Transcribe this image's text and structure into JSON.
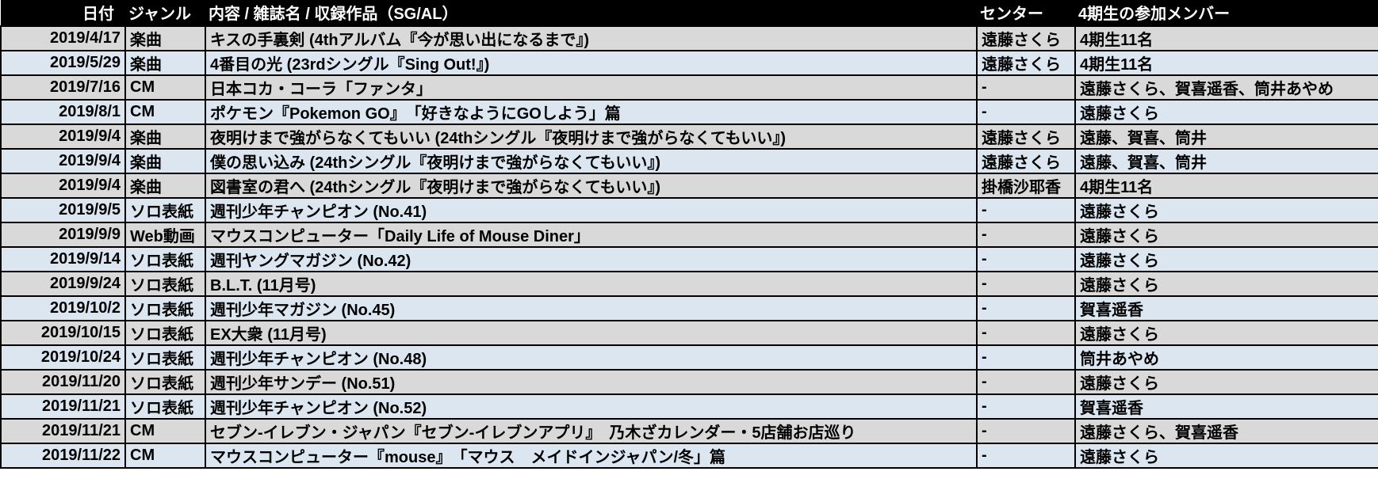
{
  "table": {
    "headers": {
      "date": "日付",
      "genre": "ジャンル",
      "content": "内容 / 雑誌名 / 収録作品（SG/AL）",
      "center": "センター",
      "members": "4期生の参加メンバー"
    },
    "rows": [
      {
        "date": "2019/4/17",
        "genre": "楽曲",
        "content": "キスの手裏剣 (4thアルバム『今が思い出になるまで』)",
        "center": "遠藤さくら",
        "members": "4期生11名"
      },
      {
        "date": "2019/5/29",
        "genre": "楽曲",
        "content": "4番目の光 (23rdシングル『Sing Out!』)",
        "center": "遠藤さくら",
        "members": "4期生11名"
      },
      {
        "date": "2019/7/16",
        "genre": "CM",
        "content": "日本コカ・コーラ「ファンタ」",
        "center": "-",
        "members": "遠藤さくら、賀喜遥香、筒井あやめ"
      },
      {
        "date": "2019/8/1",
        "genre": "CM",
        "content": "ポケモン『Pokemon GO』　「好きなようにGOしよう」篇",
        "center": "-",
        "members": "遠藤さくら"
      },
      {
        "date": "2019/9/4",
        "genre": "楽曲",
        "content": "夜明けまで強がらなくてもいい (24thシングル『夜明けまで強がらなくてもいい』)",
        "center": "遠藤さくら",
        "members": "遠藤、賀喜、筒井"
      },
      {
        "date": "2019/9/4",
        "genre": "楽曲",
        "content": "僕の思い込み (24thシングル『夜明けまで強がらなくてもいい』)",
        "center": "遠藤さくら",
        "members": "遠藤、賀喜、筒井"
      },
      {
        "date": "2019/9/4",
        "genre": "楽曲",
        "content": "図書室の君へ (24thシングル『夜明けまで強がらなくてもいい』)",
        "center": "掛橋沙耶香",
        "members": "4期生11名"
      },
      {
        "date": "2019/9/5",
        "genre": "ソロ表紙",
        "content": "週刊少年チャンピオン (No.41)",
        "center": "-",
        "members": "遠藤さくら"
      },
      {
        "date": "2019/9/9",
        "genre": "Web動画",
        "content": "マウスコンピューター「Daily Life of Mouse Diner」",
        "center": "-",
        "members": "遠藤さくら"
      },
      {
        "date": "2019/9/14",
        "genre": "ソロ表紙",
        "content": "週刊ヤングマガジン (No.42)",
        "center": "-",
        "members": "遠藤さくら"
      },
      {
        "date": "2019/9/24",
        "genre": "ソロ表紙",
        "content": "B.L.T. (11月号)",
        "center": "-",
        "members": "遠藤さくら"
      },
      {
        "date": "2019/10/2",
        "genre": "ソロ表紙",
        "content": "週刊少年マガジン (No.45)",
        "center": "-",
        "members": "賀喜遥香"
      },
      {
        "date": "2019/10/15",
        "genre": "ソロ表紙",
        "content": "EX大衆 (11月号)",
        "center": "-",
        "members": "遠藤さくら"
      },
      {
        "date": "2019/10/24",
        "genre": "ソロ表紙",
        "content": "週刊少年チャンピオン (No.48)",
        "center": "-",
        "members": "筒井あやめ"
      },
      {
        "date": "2019/11/20",
        "genre": "ソロ表紙",
        "content": "週刊少年サンデー (No.51)",
        "center": "-",
        "members": "遠藤さくら"
      },
      {
        "date": "2019/11/21",
        "genre": "ソロ表紙",
        "content": "週刊少年チャンピオン (No.52)",
        "center": "-",
        "members": "賀喜遥香"
      },
      {
        "date": "2019/11/21",
        "genre": "CM",
        "content": "セブン-イレブン・ジャパン『セブン-イレブンアプリ』　乃木ざカレンダー・5店舗お店巡り",
        "center": "-",
        "members": "遠藤さくら、賀喜遥香"
      },
      {
        "date": "2019/11/22",
        "genre": "CM",
        "content": "マウスコンピューター『mouse』　「マウス　メイドインジャパン/冬」篇",
        "center": "-",
        "members": "遠藤さくら"
      }
    ]
  },
  "colors": {
    "header_bg": "#000000",
    "header_text": "#ffffff",
    "row_odd_bg": "#d9d9d9",
    "row_even_bg": "#dce6f1",
    "border": "#000000",
    "text": "#000000"
  }
}
